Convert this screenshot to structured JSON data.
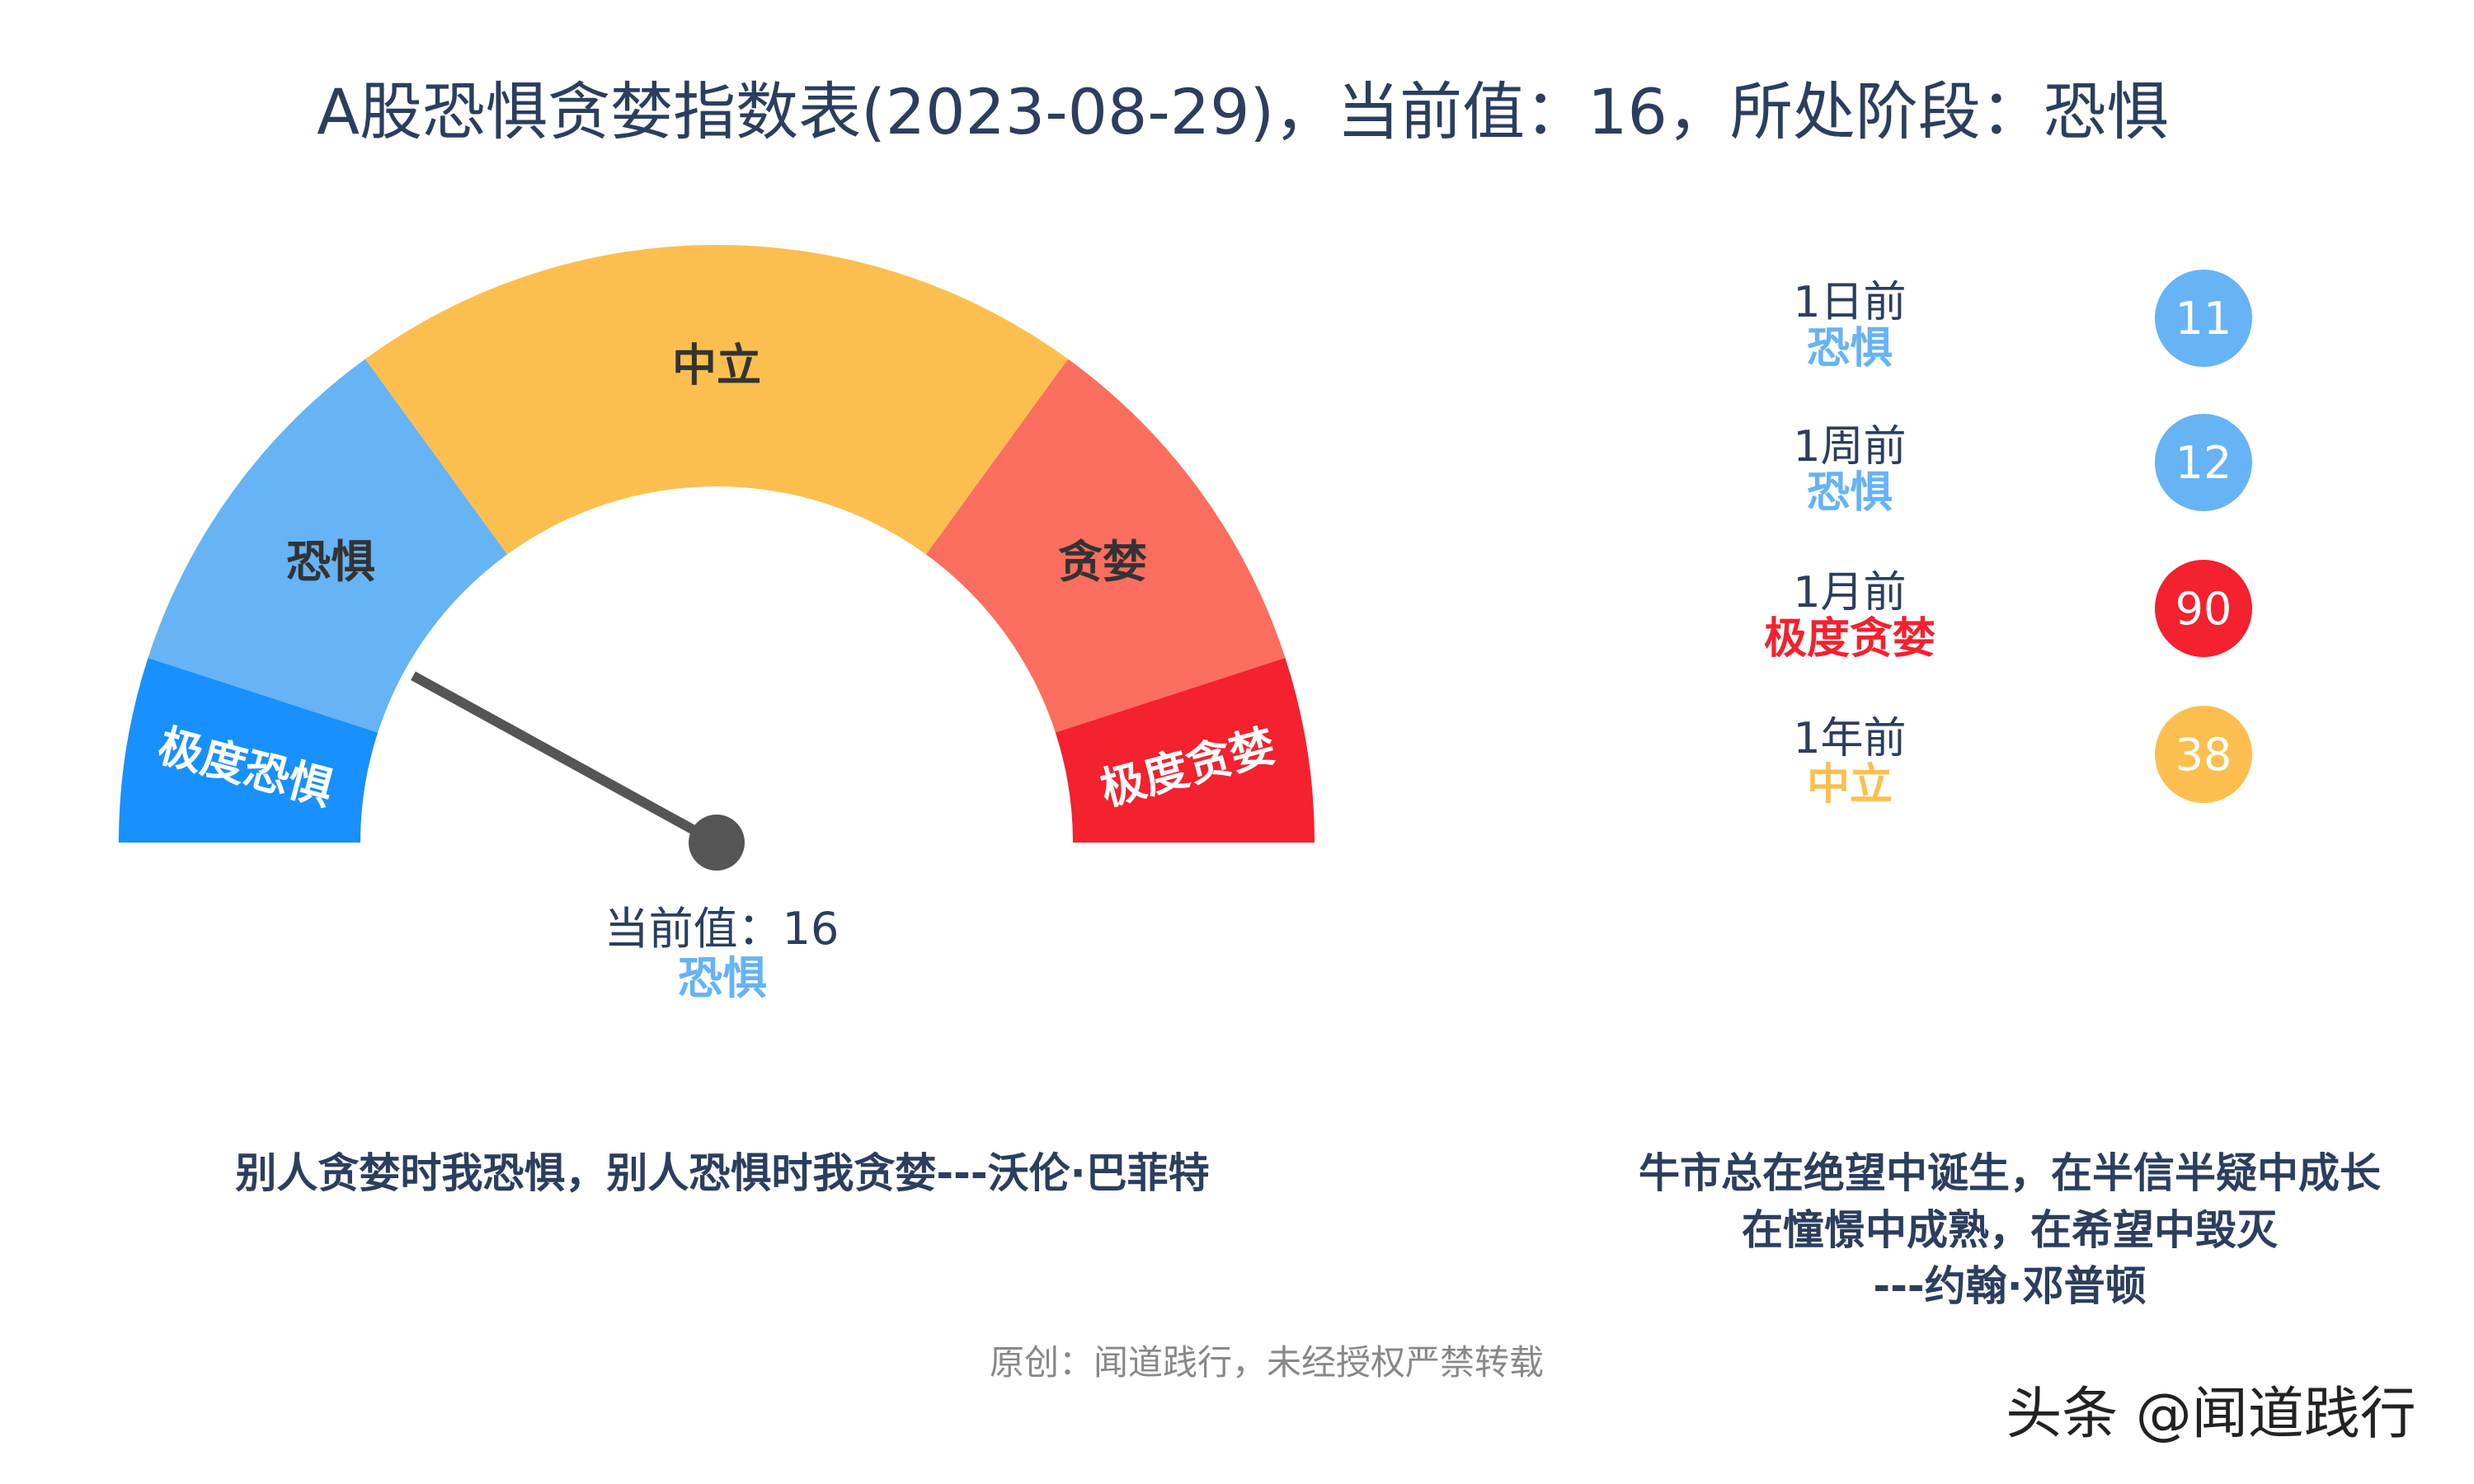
{
  "title": "A股恐惧贪婪指数表(2023-08-29)，当前值：16，所处阶段：恐惧",
  "chart_data": {
    "type": "gauge",
    "range": [
      0,
      100
    ],
    "value": 16,
    "segments": [
      {
        "label": "极度恐惧",
        "from": 0,
        "to": 10,
        "color": "#1890ff",
        "text_color": "#ffffff"
      },
      {
        "label": "恐惧",
        "from": 10,
        "to": 30,
        "color": "#66b3f5",
        "text_color": "#333333"
      },
      {
        "label": "中立",
        "from": 30,
        "to": 70,
        "color": "#fcbf4f",
        "text_color": "#333333"
      },
      {
        "label": "贪婪",
        "from": 70,
        "to": 90,
        "color": "#fb6e5f",
        "text_color": "#333333"
      },
      {
        "label": "极度贪婪",
        "from": 90,
        "to": 100,
        "color": "#f4212e",
        "text_color": "#ffffff"
      }
    ],
    "current_label": "当前值：16",
    "current_stage": "恐惧",
    "current_stage_color": "#66b3f5",
    "history": [
      {
        "period": "1日前",
        "stage": "恐惧",
        "value": "11",
        "color": "#66b3f5"
      },
      {
        "period": "1周前",
        "stage": "恐惧",
        "value": "12",
        "color": "#66b3f5"
      },
      {
        "period": "1月前",
        "stage": "极度贪婪",
        "value": "90",
        "color": "#f4212e"
      },
      {
        "period": "1年前",
        "stage": "中立",
        "value": "38",
        "color": "#fcbf4f"
      }
    ]
  },
  "quotes": {
    "left": "别人贪婪时我恐惧，别人恐惧时我贪婪---沃伦·巴菲特",
    "right": [
      "牛市总在绝望中诞生，在半信半疑中成长",
      "在憧憬中成熟，在希望中毁灭",
      "---约翰·邓普顿"
    ]
  },
  "footer": "原创：闻道践行，未经授权严禁转载",
  "watermark": "头条 @闻道践行",
  "colors": {
    "title": "#2c3e5e",
    "needle": "#555555",
    "footer": "#888888"
  }
}
